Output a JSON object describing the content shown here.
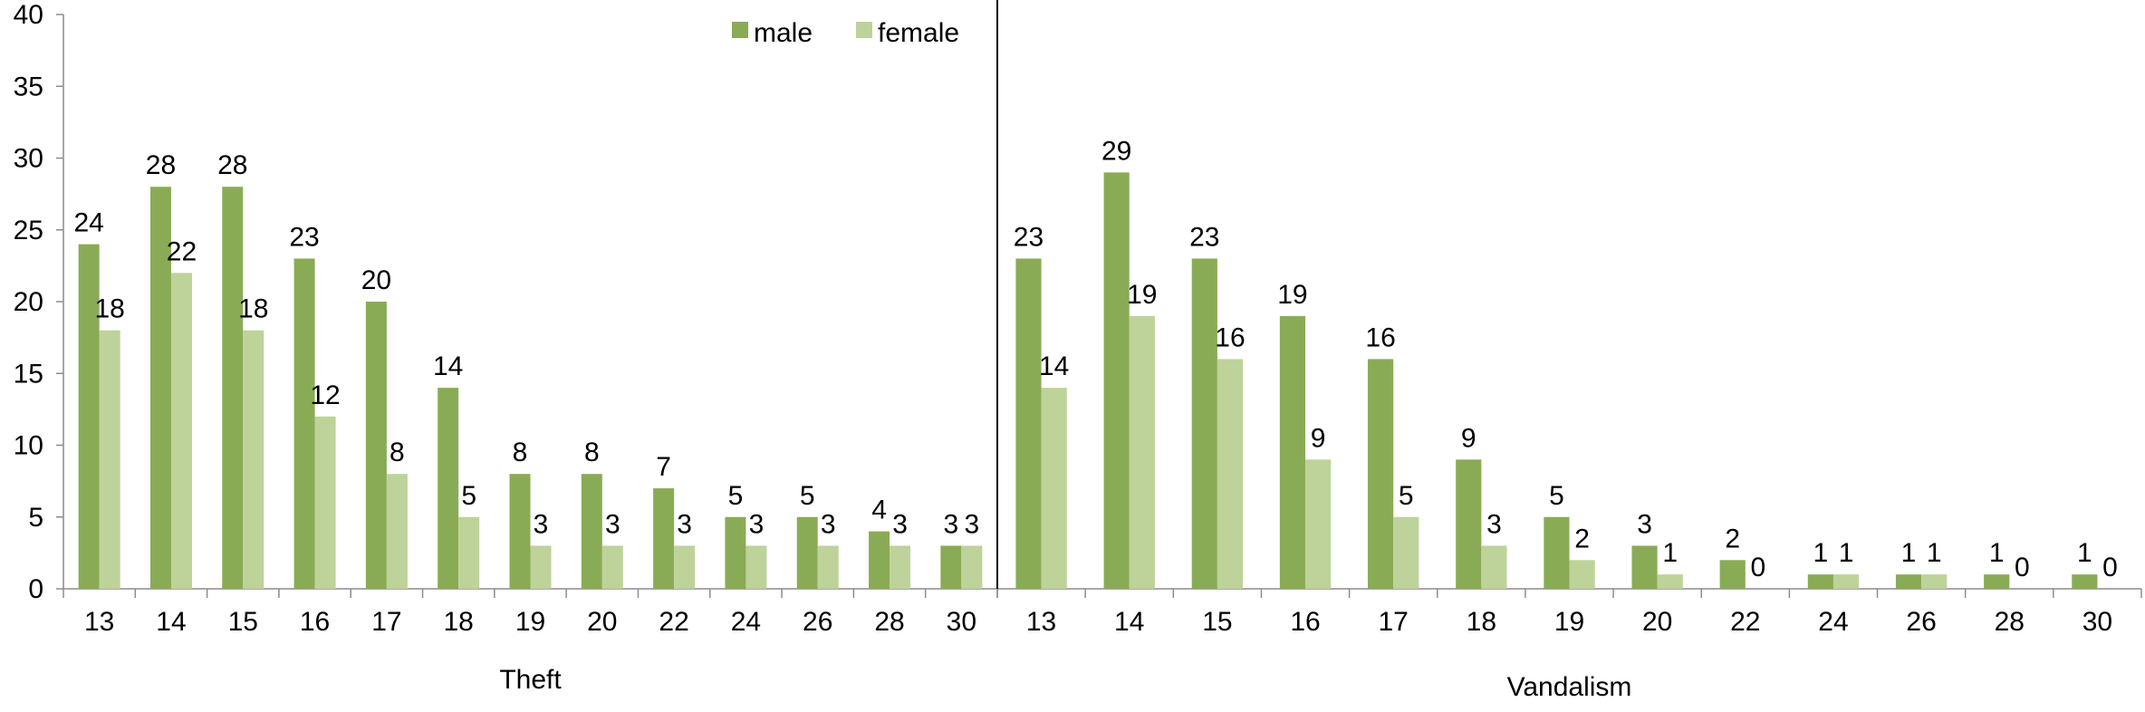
{
  "chart_data": {
    "type": "bar",
    "y_ticks": [
      0,
      5,
      10,
      15,
      20,
      25,
      30,
      35,
      40
    ],
    "ylim": [
      0,
      40
    ],
    "grid": false,
    "legend_position": "top-center",
    "colors": {
      "male": "#8aab55",
      "female": "#bdd39a"
    },
    "groups": [
      {
        "label": "Theft",
        "categories": [
          "13",
          "14",
          "15",
          "16",
          "17",
          "18",
          "19",
          "20",
          "22",
          "24",
          "26",
          "28",
          "30"
        ],
        "series": [
          {
            "name": "male",
            "values": [
              24,
              28,
              28,
              23,
              20,
              14,
              8,
              8,
              7,
              5,
              5,
              4,
              3
            ]
          },
          {
            "name": "female",
            "values": [
              18,
              22,
              18,
              12,
              8,
              5,
              3,
              3,
              3,
              3,
              3,
              3,
              3
            ]
          }
        ]
      },
      {
        "label": "Vandalism",
        "categories": [
          "13",
          "14",
          "15",
          "16",
          "17",
          "18",
          "19",
          "20",
          "22",
          "24",
          "26",
          "28",
          "30"
        ],
        "series": [
          {
            "name": "male",
            "values": [
              23,
              29,
              23,
              19,
              16,
              9,
              5,
              3,
              2,
              1,
              1,
              1,
              1
            ]
          },
          {
            "name": "female",
            "values": [
              14,
              19,
              16,
              9,
              5,
              3,
              2,
              1,
              0,
              1,
              1,
              0,
              0
            ]
          }
        ]
      }
    ]
  }
}
